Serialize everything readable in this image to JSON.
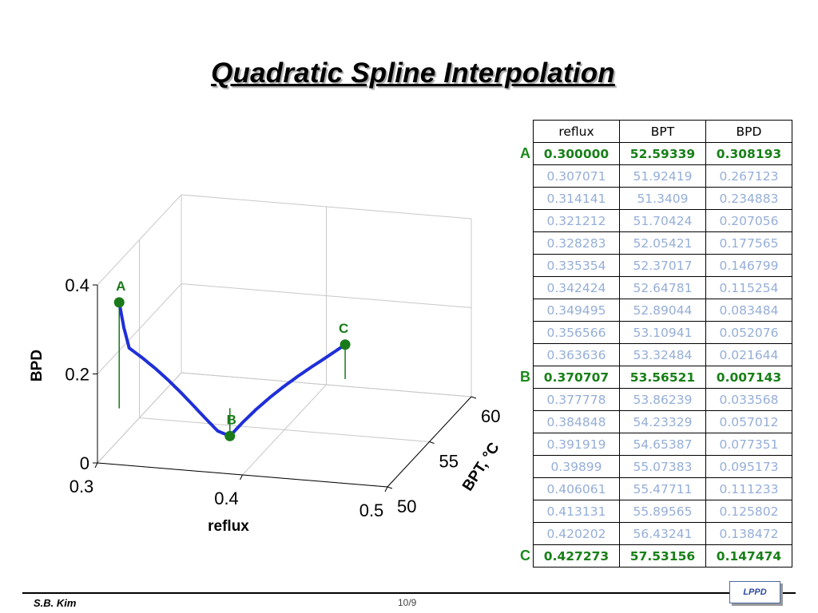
{
  "title": "Quadratic Spline Interpolation",
  "footer": {
    "author": "S.B. Kim",
    "page": "10/9",
    "badge": "LPPD"
  },
  "chart_data": {
    "type": "line",
    "projection": "3d",
    "xlabel": "reflux",
    "ylabel": "BPT, °C",
    "zlabel": "BPD",
    "xlim": [
      0.3,
      0.5
    ],
    "ylim": [
      50,
      60
    ],
    "zlim": [
      0,
      0.4
    ],
    "xticks": [
      "0.3",
      "0.4",
      "0.5"
    ],
    "yticks": [
      "50",
      "55",
      "60"
    ],
    "zticks": [
      "0",
      "0.2",
      "0.4"
    ],
    "grid": true,
    "line_color": "#1f2fd8",
    "marker_color": "#1a7a1a",
    "points": [
      {
        "label": "A",
        "x": 0.3,
        "y": 52.59339,
        "z": 0.308193
      },
      {
        "label": "B",
        "x": 0.370707,
        "y": 53.56521,
        "z": 0.007143
      },
      {
        "label": "C",
        "x": 0.427273,
        "y": 57.53156,
        "z": 0.147474
      }
    ],
    "series": [
      {
        "x": [
          0.3,
          0.307071,
          0.314141,
          0.321212,
          0.328283,
          0.335354,
          0.342424,
          0.349495,
          0.356566,
          0.363636,
          0.370707,
          0.377778,
          0.384848,
          0.391919,
          0.39899,
          0.406061,
          0.413131,
          0.420202,
          0.427273
        ],
        "y": [
          52.59339,
          51.92419,
          51.3409,
          51.70424,
          52.05421,
          52.37017,
          52.64781,
          52.89044,
          53.10941,
          53.32484,
          53.56521,
          53.86239,
          54.23329,
          54.65387,
          55.07383,
          55.47711,
          55.89565,
          56.43241,
          57.53156
        ],
        "z": [
          0.308193,
          0.267123,
          0.234883,
          0.207056,
          0.177565,
          0.146799,
          0.115254,
          0.083484,
          0.052076,
          0.021644,
          0.007143,
          0.033568,
          0.057012,
          0.077351,
          0.095173,
          0.111233,
          0.125802,
          0.138472,
          0.147474
        ]
      }
    ]
  },
  "table": {
    "headers": [
      "reflux",
      "BPT",
      "BPD"
    ],
    "rows": [
      {
        "label": "A",
        "key": true,
        "cells": [
          "0.300000",
          "52.59339",
          "0.308193"
        ]
      },
      {
        "label": "",
        "key": false,
        "cells": [
          "0.307071",
          "51.92419",
          "0.267123"
        ]
      },
      {
        "label": "",
        "key": false,
        "cells": [
          "0.314141",
          "51.3409",
          "0.234883"
        ]
      },
      {
        "label": "",
        "key": false,
        "cells": [
          "0.321212",
          "51.70424",
          "0.207056"
        ]
      },
      {
        "label": "",
        "key": false,
        "cells": [
          "0.328283",
          "52.05421",
          "0.177565"
        ]
      },
      {
        "label": "",
        "key": false,
        "cells": [
          "0.335354",
          "52.37017",
          "0.146799"
        ]
      },
      {
        "label": "",
        "key": false,
        "cells": [
          "0.342424",
          "52.64781",
          "0.115254"
        ]
      },
      {
        "label": "",
        "key": false,
        "cells": [
          "0.349495",
          "52.89044",
          "0.083484"
        ]
      },
      {
        "label": "",
        "key": false,
        "cells": [
          "0.356566",
          "53.10941",
          "0.052076"
        ]
      },
      {
        "label": "",
        "key": false,
        "cells": [
          "0.363636",
          "53.32484",
          "0.021644"
        ]
      },
      {
        "label": "B",
        "key": true,
        "cells": [
          "0.370707",
          "53.56521",
          "0.007143"
        ]
      },
      {
        "label": "",
        "key": false,
        "cells": [
          "0.377778",
          "53.86239",
          "0.033568"
        ]
      },
      {
        "label": "",
        "key": false,
        "cells": [
          "0.384848",
          "54.23329",
          "0.057012"
        ]
      },
      {
        "label": "",
        "key": false,
        "cells": [
          "0.391919",
          "54.65387",
          "0.077351"
        ]
      },
      {
        "label": "",
        "key": false,
        "cells": [
          "0.39899",
          "55.07383",
          "0.095173"
        ]
      },
      {
        "label": "",
        "key": false,
        "cells": [
          "0.406061",
          "55.47711",
          "0.111233"
        ]
      },
      {
        "label": "",
        "key": false,
        "cells": [
          "0.413131",
          "55.89565",
          "0.125802"
        ]
      },
      {
        "label": "",
        "key": false,
        "cells": [
          "0.420202",
          "56.43241",
          "0.138472"
        ]
      },
      {
        "label": "C",
        "key": true,
        "cells": [
          "0.427273",
          "57.53156",
          "0.147474"
        ]
      }
    ]
  }
}
